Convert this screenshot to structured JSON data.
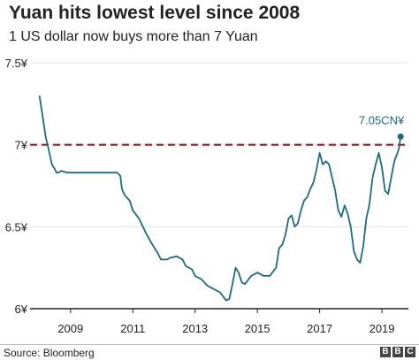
{
  "title": "Yuan hits lowest level since 2008",
  "subtitle": "1 US dollar now buys more than 7 Yuan",
  "source": "Source: Bloomberg",
  "brand": [
    "B",
    "B",
    "C"
  ],
  "colors": {
    "line": "#1f6b7e",
    "reference_line": "#9b1c1c",
    "grid": "#e0e0e0",
    "axis": "#222222",
    "annotation": "#1f6b7e"
  },
  "chart_data": {
    "type": "line",
    "title": "Yuan hits lowest level since 2008",
    "subtitle": "1 US dollar now buys more than 7 Yuan",
    "xlabel": "",
    "ylabel": "",
    "xlim": [
      2007.7,
      2019.85
    ],
    "ylim": [
      6.0,
      7.5
    ],
    "x_ticks": [
      2009,
      2011,
      2013,
      2015,
      2017,
      2019
    ],
    "x_tick_labels": [
      "2009",
      "2011",
      "2013",
      "2015",
      "2017",
      "2019"
    ],
    "y_ticks": [
      6.0,
      6.5,
      7.0,
      7.5
    ],
    "y_tick_labels": [
      "6¥",
      "6.5¥",
      "7¥",
      "7.5¥"
    ],
    "grid": "horizontal",
    "reference_line": {
      "y": 7.0,
      "style": "dashed"
    },
    "end_point": {
      "x": 2019.6,
      "y": 7.05,
      "label": "7.05CN¥"
    },
    "series": [
      {
        "x": [
          2008.0,
          2008.1,
          2008.2,
          2008.3,
          2008.4,
          2008.5,
          2008.55,
          2008.6,
          2008.7,
          2008.9,
          2009.1,
          2009.5,
          2009.9,
          2010.3,
          2010.5,
          2010.6,
          2010.65,
          2010.75,
          2010.9,
          2011.0,
          2011.2,
          2011.4,
          2011.6,
          2011.8,
          2011.9,
          2012.0,
          2012.1,
          2012.2,
          2012.4,
          2012.6,
          2012.7,
          2012.9,
          2013.0,
          2013.2,
          2013.4,
          2013.6,
          2013.8,
          2014.0,
          2014.1,
          2014.2,
          2014.3,
          2014.4,
          2014.5,
          2014.6,
          2014.8,
          2015.0,
          2015.2,
          2015.4,
          2015.6,
          2015.7,
          2015.8,
          2015.9,
          2016.0,
          2016.1,
          2016.2,
          2016.3,
          2016.4,
          2016.5,
          2016.6,
          2016.7,
          2016.8,
          2016.9,
          2017.0,
          2017.1,
          2017.2,
          2017.3,
          2017.4,
          2017.5,
          2017.6,
          2017.7,
          2017.8,
          2017.9,
          2018.0,
          2018.1,
          2018.2,
          2018.3,
          2018.4,
          2018.5,
          2018.6,
          2018.7,
          2018.8,
          2018.9,
          2019.0,
          2019.1,
          2019.2,
          2019.3,
          2019.4,
          2019.5,
          2019.55,
          2019.6
        ],
        "y": [
          7.3,
          7.18,
          7.05,
          6.97,
          6.88,
          6.85,
          6.83,
          6.83,
          6.84,
          6.83,
          6.83,
          6.83,
          6.83,
          6.83,
          6.83,
          6.81,
          6.73,
          6.69,
          6.66,
          6.6,
          6.55,
          6.47,
          6.4,
          6.34,
          6.3,
          6.3,
          6.3,
          6.31,
          6.32,
          6.3,
          6.26,
          6.24,
          6.2,
          6.18,
          6.14,
          6.12,
          6.1,
          6.05,
          6.06,
          6.15,
          6.25,
          6.22,
          6.16,
          6.15,
          6.2,
          6.22,
          6.2,
          6.2,
          6.25,
          6.37,
          6.39,
          6.45,
          6.55,
          6.57,
          6.5,
          6.52,
          6.6,
          6.66,
          6.68,
          6.73,
          6.77,
          6.85,
          6.95,
          6.88,
          6.9,
          6.88,
          6.8,
          6.72,
          6.6,
          6.56,
          6.63,
          6.58,
          6.5,
          6.35,
          6.3,
          6.28,
          6.38,
          6.55,
          6.64,
          6.8,
          6.88,
          6.95,
          6.86,
          6.72,
          6.7,
          6.8,
          6.9,
          6.95,
          6.98,
          7.05
        ]
      }
    ]
  }
}
